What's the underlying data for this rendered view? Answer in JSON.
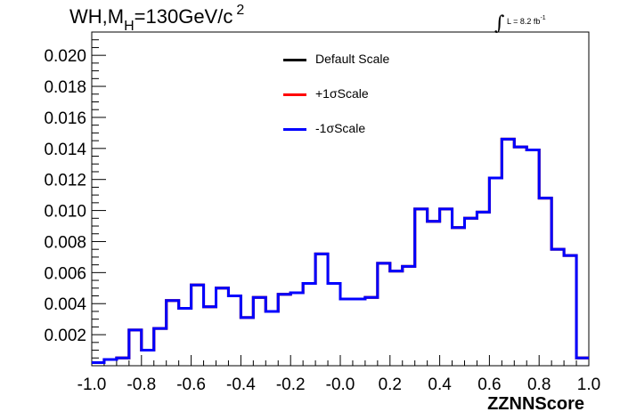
{
  "header": {
    "title_main": "WH,M",
    "title_sub": "H",
    "title_rest": "=130GeV/c",
    "title_sup": "2",
    "lumi_text": "L = 8.2 fb",
    "lumi_sup": "-1"
  },
  "legend": {
    "items": [
      {
        "label": "Default Scale",
        "color": "#000000"
      },
      {
        "label": "+1σScale",
        "color": "#ff0000"
      },
      {
        "label": "-1σScale",
        "color": "#0000ff"
      }
    ]
  },
  "chart_data": {
    "type": "line",
    "title": "WH,MH=130GeV/c 2",
    "xlabel": "ZZNNScore",
    "ylabel": "",
    "xlim": [
      -1.0,
      1.0
    ],
    "ylim": [
      0.0,
      0.0215
    ],
    "x_ticks": [
      "-1.0",
      "-0.8",
      "-0.6",
      "-0.4",
      "-0.2",
      "-0.0",
      "0.2",
      "0.4",
      "0.6",
      "0.8",
      "1.0"
    ],
    "x_tick_values": [
      -1.0,
      -0.8,
      -0.6,
      -0.4,
      -0.2,
      0.0,
      0.2,
      0.4,
      0.6,
      0.8,
      1.0
    ],
    "y_ticks": [
      "0.002",
      "0.004",
      "0.006",
      "0.008",
      "0.010",
      "0.012",
      "0.014",
      "0.016",
      "0.018",
      "0.020"
    ],
    "y_tick_values": [
      0.002,
      0.004,
      0.006,
      0.008,
      0.01,
      0.012,
      0.014,
      0.016,
      0.018,
      0.02
    ],
    "bin_edges": [
      -1.0,
      -0.95,
      -0.9,
      -0.85,
      -0.8,
      -0.75,
      -0.7,
      -0.65,
      -0.6,
      -0.55,
      -0.5,
      -0.45,
      -0.4,
      -0.35,
      -0.3,
      -0.25,
      -0.2,
      -0.15,
      -0.1,
      -0.05,
      0.0,
      0.05,
      0.1,
      0.15,
      0.2,
      0.25,
      0.3,
      0.35,
      0.4,
      0.45,
      0.5,
      0.55,
      0.6,
      0.65,
      0.7,
      0.75,
      0.8,
      0.85,
      0.9,
      0.95,
      1.0
    ],
    "series": [
      {
        "name": "Default Scale",
        "color": "#000000",
        "values": [
          0.0002,
          0.0004,
          0.0005,
          0.0023,
          0.001,
          0.0024,
          0.0042,
          0.0037,
          0.0052,
          0.0038,
          0.005,
          0.0045,
          0.0031,
          0.0044,
          0.0035,
          0.0046,
          0.0047,
          0.0053,
          0.0072,
          0.0053,
          0.0043,
          0.0043,
          0.0044,
          0.0066,
          0.0061,
          0.0064,
          0.0101,
          0.0093,
          0.0101,
          0.0089,
          0.0095,
          0.0099,
          0.0121,
          0.0146,
          0.0141,
          0.0139,
          0.0108,
          0.0075,
          0.0071,
          0.0005
        ]
      },
      {
        "name": "+1σScale",
        "color": "#ff0000",
        "values": [
          0.0002,
          0.0004,
          0.0005,
          0.0023,
          0.001,
          0.0024,
          0.0042,
          0.0037,
          0.0052,
          0.0038,
          0.005,
          0.0045,
          0.0031,
          0.0044,
          0.0035,
          0.0046,
          0.0047,
          0.0053,
          0.0072,
          0.0053,
          0.0043,
          0.0043,
          0.0044,
          0.0066,
          0.0061,
          0.0064,
          0.0101,
          0.0093,
          0.0101,
          0.0089,
          0.0095,
          0.0099,
          0.0121,
          0.0146,
          0.0141,
          0.0139,
          0.0108,
          0.0075,
          0.0071,
          0.0005
        ]
      },
      {
        "name": "-1σScale",
        "color": "#0000ff",
        "values": [
          0.0002,
          0.0004,
          0.0005,
          0.0023,
          0.001,
          0.0024,
          0.0042,
          0.0037,
          0.0052,
          0.0038,
          0.005,
          0.0045,
          0.0031,
          0.0044,
          0.0035,
          0.0046,
          0.0047,
          0.0053,
          0.0072,
          0.0053,
          0.0043,
          0.0043,
          0.0044,
          0.0066,
          0.0061,
          0.0064,
          0.0101,
          0.0093,
          0.0101,
          0.0089,
          0.0095,
          0.0099,
          0.0121,
          0.0146,
          0.0141,
          0.0139,
          0.0108,
          0.0075,
          0.0071,
          0.0005
        ]
      }
    ],
    "grid": false,
    "legend_position": "top-center"
  }
}
